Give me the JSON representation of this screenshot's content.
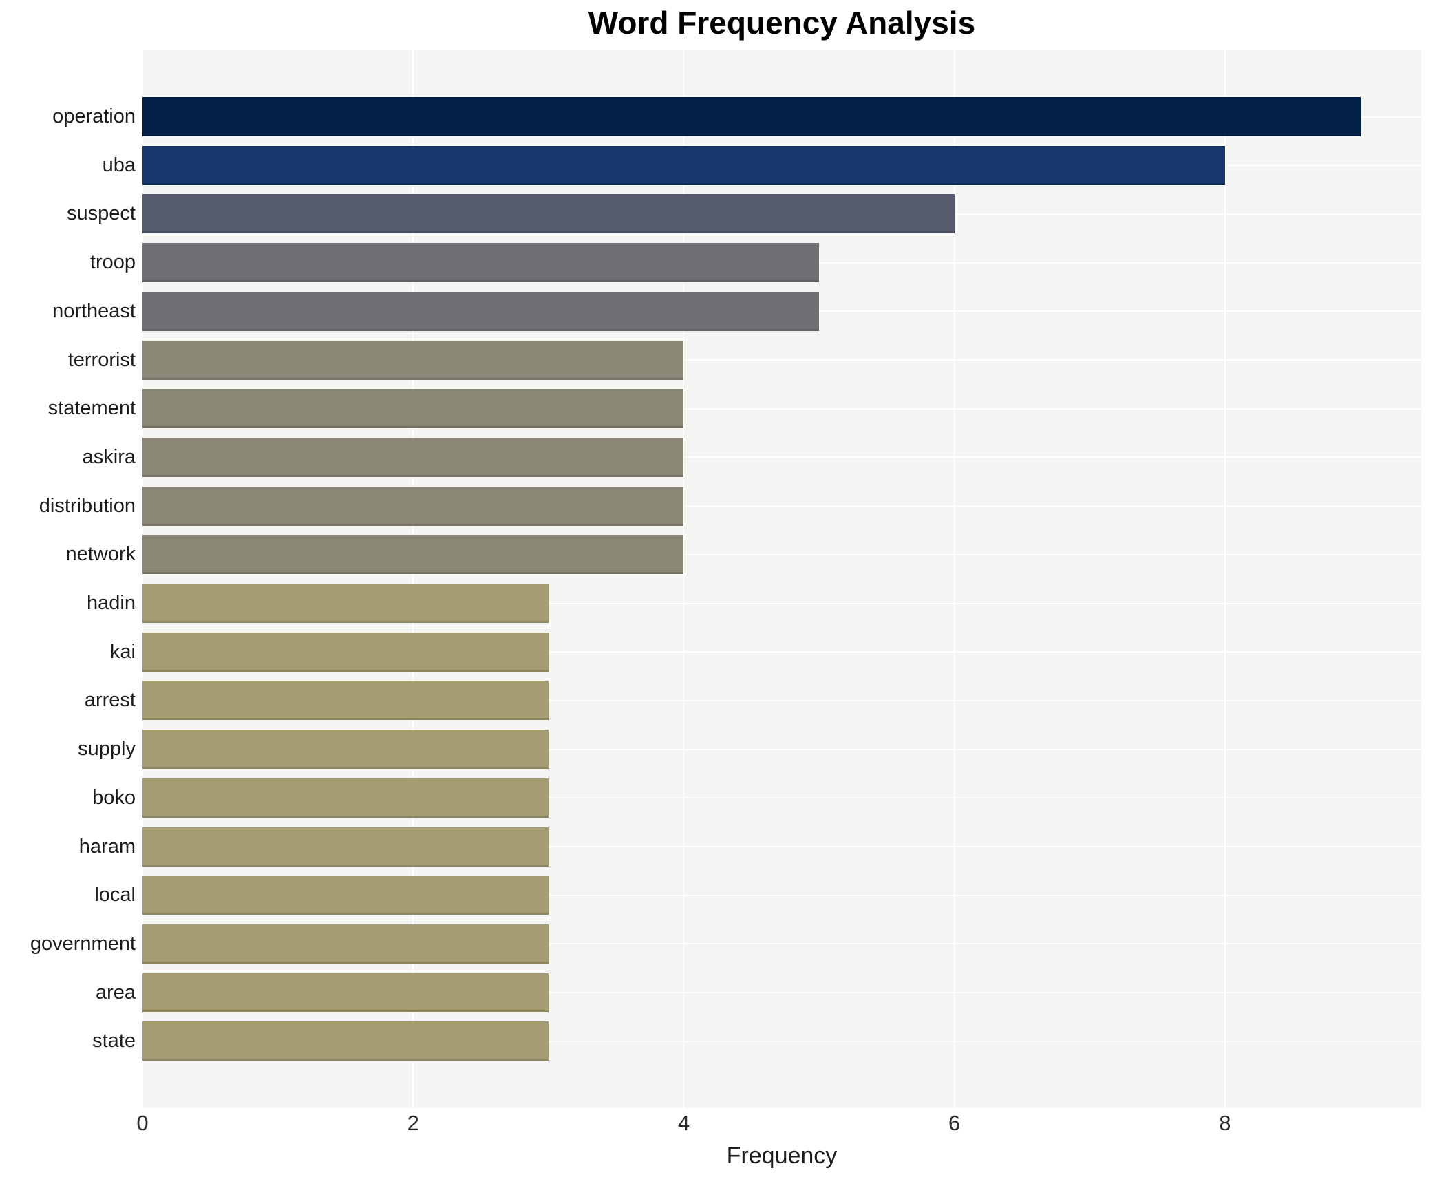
{
  "chart_data": {
    "type": "bar",
    "orientation": "horizontal",
    "title": "Word Frequency Analysis",
    "xlabel": "Frequency",
    "ylabel": "",
    "categories": [
      "operation",
      "uba",
      "suspect",
      "troop",
      "northeast",
      "terrorist",
      "statement",
      "askira",
      "distribution",
      "network",
      "hadin",
      "kai",
      "arrest",
      "supply",
      "boko",
      "haram",
      "local",
      "government",
      "area",
      "state"
    ],
    "values": [
      9,
      8,
      6,
      5,
      5,
      4,
      4,
      4,
      4,
      4,
      3,
      3,
      3,
      3,
      3,
      3,
      3,
      3,
      3,
      3
    ],
    "bar_colors": [
      "#02204a",
      "#17376e",
      "#565c6e",
      "#6e7073",
      "#6e7073",
      "#8b8776",
      "#8b8776",
      "#8b8776",
      "#8b8776",
      "#8b8776",
      "#a59c72",
      "#a59c72",
      "#a59c72",
      "#a59c72",
      "#a59c72",
      "#a59c72",
      "#a59c72",
      "#a59c72",
      "#a59c72",
      "#a59c72"
    ],
    "x_ticks": [
      0,
      2,
      4,
      6,
      8
    ],
    "xlim": [
      0,
      9.45
    ],
    "grid": true,
    "legend": "none",
    "plot_background": "#f5f5f3",
    "grid_color": "#ffffff",
    "title_color": "#000000",
    "tick_label_color": "#2b2b2b"
  }
}
